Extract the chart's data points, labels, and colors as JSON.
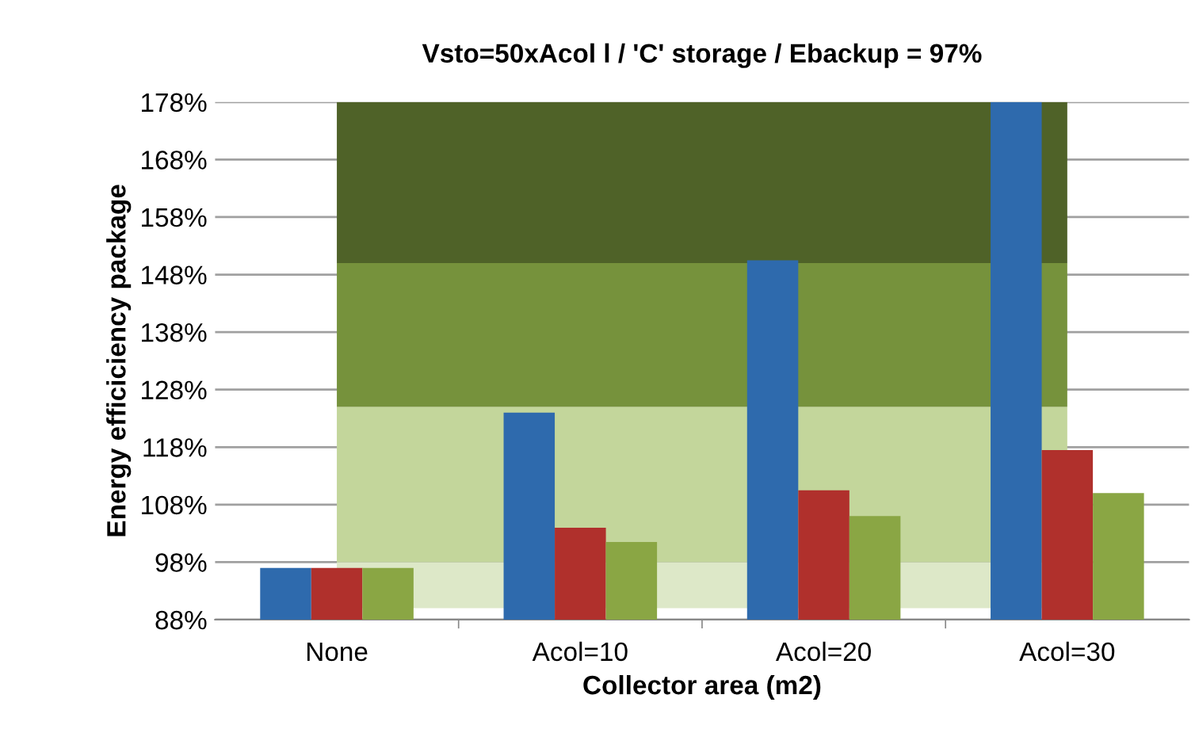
{
  "chart_data": {
    "type": "bar",
    "title": "Vsto=50xAcol l / 'C' storage / Ebackup = 97%",
    "xlabel": "Collector area (m2)",
    "ylabel": "Energy efficiciency package",
    "categories": [
      "None",
      "Acol=10",
      "Acol=20",
      "Acol=30"
    ],
    "series": [
      {
        "color": "#2e6aad",
        "values": [
          97,
          124,
          150.5,
          178
        ]
      },
      {
        "color": "#b0302c",
        "values": [
          97,
          104,
          110.5,
          117.5
        ]
      },
      {
        "color": "#8aa644",
        "values": [
          97,
          101.5,
          106,
          110
        ]
      }
    ],
    "ylim": [
      88,
      178
    ],
    "yticks": [
      {
        "value": 88,
        "label": "88%"
      },
      {
        "value": 98,
        "label": "98%"
      },
      {
        "value": 108,
        "label": "108%"
      },
      {
        "value": 118,
        "label": "118%"
      },
      {
        "value": 128,
        "label": "128%"
      },
      {
        "value": 138,
        "label": "138%"
      },
      {
        "value": 148,
        "label": "148%"
      },
      {
        "value": 158,
        "label": "158%"
      },
      {
        "value": 168,
        "label": "168%"
      },
      {
        "value": 178,
        "label": "178%"
      }
    ],
    "bands": [
      {
        "axis": "y",
        "from": 90,
        "to": 98,
        "color": "#dde8c8"
      },
      {
        "axis": "y",
        "from": 98,
        "to": 125,
        "color": "#c3d69b"
      },
      {
        "axis": "y",
        "from": 125,
        "to": 150,
        "color": "#76923c"
      },
      {
        "axis": "y",
        "from": 150,
        "to": 178,
        "color": "#4f6228"
      }
    ],
    "grid": "y",
    "legend": false
  }
}
